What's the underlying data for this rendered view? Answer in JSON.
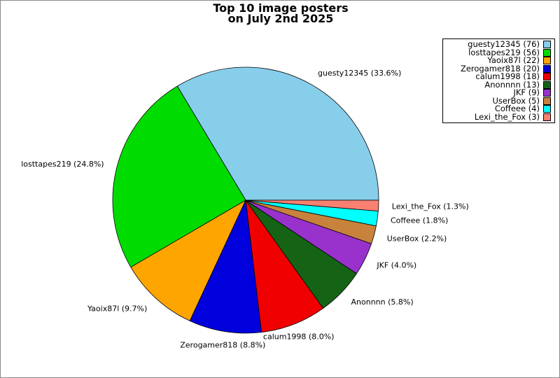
{
  "title": {
    "line1": "Top 10 image posters",
    "line2": "on July 2nd 2025"
  },
  "chart_data": {
    "type": "pie",
    "title": "Top 10 image posters on July 2nd 2025",
    "start_angle_deg": 0,
    "direction": "counterclockwise",
    "legend_position": "upper-right",
    "slice_label_format": "label (percent%)",
    "legend_label_format": "label (count)",
    "slices": [
      {
        "label": "guesty12345",
        "count": 76,
        "percent": 33.6,
        "color": "#87CEEB",
        "slice_label": "guesty12345 (33.6%)",
        "legend_text": "guesty12345 (76)"
      },
      {
        "label": "losttapes219",
        "count": 56,
        "percent": 24.8,
        "color": "#00DC00",
        "slice_label": "losttapes219 (24.8%)",
        "legend_text": "losttapes219 (56)"
      },
      {
        "label": "Yaoix87l",
        "count": 22,
        "percent": 9.7,
        "color": "#FFA500",
        "slice_label": "Yaoix87l (9.7%)",
        "legend_text": "Yaoix87l (22)"
      },
      {
        "label": "Zerogamer818",
        "count": 20,
        "percent": 8.8,
        "color": "#0000DC",
        "slice_label": "Zerogamer818 (8.8%)",
        "legend_text": "Zerogamer818 (20)"
      },
      {
        "label": "calum1998",
        "count": 18,
        "percent": 8.0,
        "color": "#F00000",
        "slice_label": "calum1998 (8.0%)",
        "legend_text": "calum1998 (18)"
      },
      {
        "label": "Anonnnn",
        "count": 13,
        "percent": 5.8,
        "color": "#156415",
        "slice_label": "Anonnnn (5.8%)",
        "legend_text": "Anonnnn (13)"
      },
      {
        "label": "JKF",
        "count": 9,
        "percent": 4.0,
        "color": "#9932CC",
        "slice_label": "JKF (4.0%)",
        "legend_text": "JKF (9)"
      },
      {
        "label": "UserBox",
        "count": 5,
        "percent": 2.2,
        "color": "#C8823C",
        "slice_label": "UserBox (2.2%)",
        "legend_text": "UserBox (5)"
      },
      {
        "label": "Coffeee",
        "count": 4,
        "percent": 1.8,
        "color": "#00FFFF",
        "slice_label": "Coffeee (1.8%)",
        "legend_text": "Coffeee (4)"
      },
      {
        "label": "Lexi_the_Fox",
        "count": 3,
        "percent": 1.3,
        "color": "#FA8072",
        "slice_label": "Lexi_the_Fox (1.3%)",
        "legend_text": "Lexi_the_Fox (3)"
      }
    ]
  }
}
